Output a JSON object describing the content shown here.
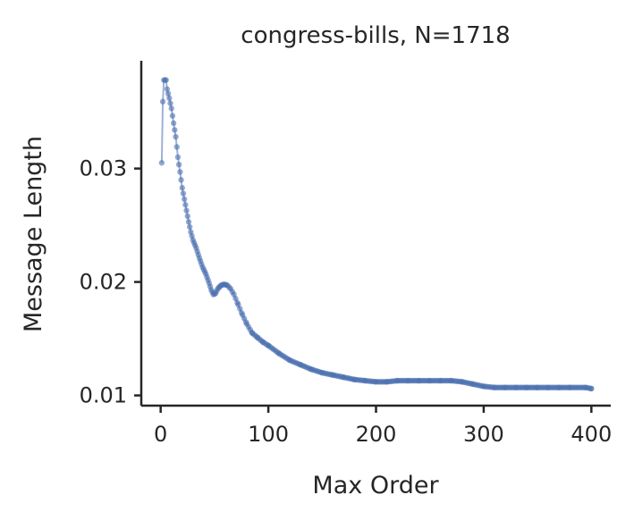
{
  "chart_data": {
    "type": "line",
    "title": "congress-bills, N=1718",
    "xlabel": "Max Order",
    "ylabel": "Message Length",
    "xlim": [
      -18,
      418
    ],
    "ylim": [
      0.0091,
      0.0395
    ],
    "x_ticks": [
      0,
      100,
      200,
      300,
      400
    ],
    "x_tick_labels": [
      "0",
      "100",
      "200",
      "300",
      "400"
    ],
    "y_ticks": [
      0.01,
      0.02,
      0.03
    ],
    "y_tick_labels": [
      "0.01",
      "0.02",
      "0.03"
    ],
    "grid": false,
    "series": [
      {
        "color": "#4c72b0",
        "keypoints": [
          [
            1,
            0.0305
          ],
          [
            2,
            0.0359
          ],
          [
            3,
            0.0378
          ],
          [
            4,
            0.0378
          ],
          [
            5,
            0.0378
          ],
          [
            6,
            0.037
          ],
          [
            8,
            0.0362
          ],
          [
            10,
            0.0353
          ],
          [
            12,
            0.034
          ],
          [
            14,
            0.0328
          ],
          [
            16,
            0.031
          ],
          [
            18,
            0.0297
          ],
          [
            20,
            0.0283
          ],
          [
            22,
            0.0273
          ],
          [
            24,
            0.0263
          ],
          [
            26,
            0.0253
          ],
          [
            28,
            0.0244
          ],
          [
            30,
            0.0237
          ],
          [
            33,
            0.023
          ],
          [
            36,
            0.0221
          ],
          [
            39,
            0.0213
          ],
          [
            42,
            0.0207
          ],
          [
            45,
            0.0199
          ],
          [
            47,
            0.0193
          ],
          [
            49,
            0.0189
          ],
          [
            51,
            0.019
          ],
          [
            53,
            0.0194
          ],
          [
            56,
            0.0197
          ],
          [
            59,
            0.0198
          ],
          [
            62,
            0.0197
          ],
          [
            65,
            0.0194
          ],
          [
            68,
            0.0189
          ],
          [
            72,
            0.018
          ],
          [
            76,
            0.0171
          ],
          [
            80,
            0.0163
          ],
          [
            85,
            0.0155
          ],
          [
            90,
            0.0151
          ],
          [
            95,
            0.0147
          ],
          [
            100,
            0.0144
          ],
          [
            110,
            0.0137
          ],
          [
            120,
            0.0131
          ],
          [
            130,
            0.0127
          ],
          [
            140,
            0.0123
          ],
          [
            150,
            0.012
          ],
          [
            160,
            0.0118
          ],
          [
            170,
            0.0116
          ],
          [
            180,
            0.0114
          ],
          [
            190,
            0.0113
          ],
          [
            200,
            0.0112
          ],
          [
            210,
            0.0112
          ],
          [
            220,
            0.0113
          ],
          [
            230,
            0.0113
          ],
          [
            240,
            0.0113
          ],
          [
            250,
            0.0113
          ],
          [
            260,
            0.0113
          ],
          [
            270,
            0.0113
          ],
          [
            280,
            0.0112
          ],
          [
            290,
            0.011
          ],
          [
            300,
            0.0108
          ],
          [
            310,
            0.0107
          ],
          [
            320,
            0.0107
          ],
          [
            330,
            0.0107
          ],
          [
            340,
            0.0107
          ],
          [
            350,
            0.0107
          ],
          [
            360,
            0.0107
          ],
          [
            370,
            0.0107
          ],
          [
            380,
            0.0107
          ],
          [
            395,
            0.0107
          ],
          [
            400,
            0.0106
          ]
        ]
      }
    ]
  }
}
